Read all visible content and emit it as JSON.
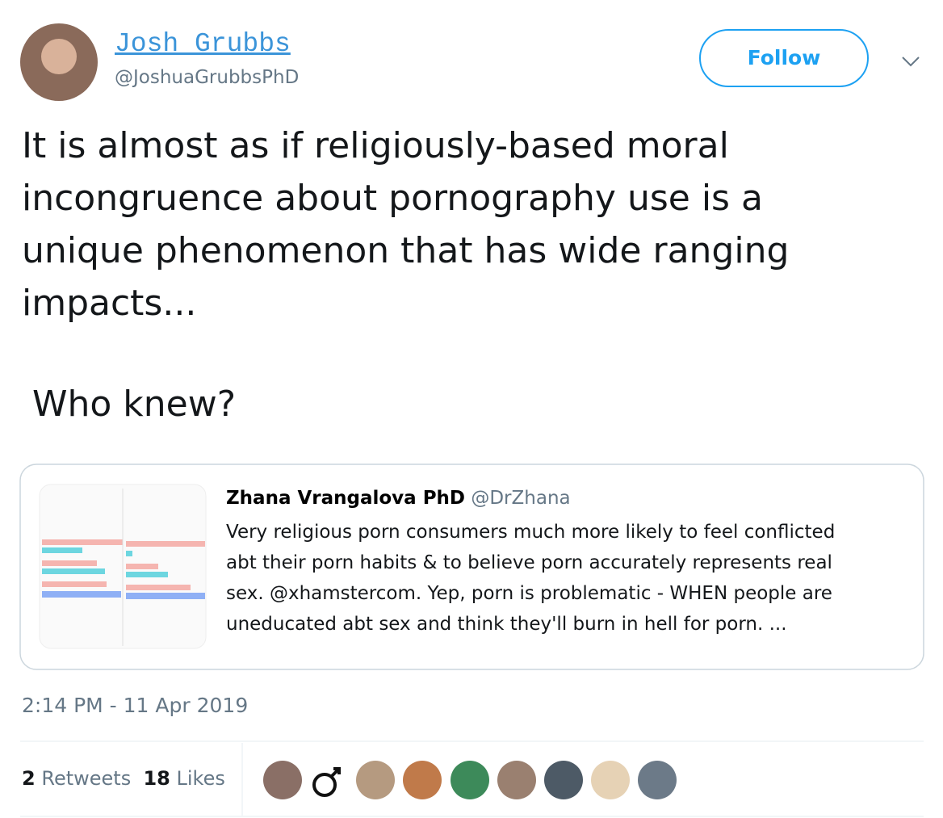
{
  "author": {
    "name": "Josh Grubbs",
    "handle": "@JoshuaGrubbsPhD"
  },
  "follow_button": "Follow",
  "tweet": {
    "lines": [
      "It is almost as if religiously-based moral",
      "incongruence about pornography use is a",
      "unique phenomenon that has wide ranging",
      "impacts..."
    ],
    "closing": "Who knew?"
  },
  "quoted_tweet": {
    "name": "Zhana Vrangalova PhD",
    "handle": "@DrZhana",
    "lines": [
      "Very religious porn consumers much more likely to feel conflicted",
      "abt their porn habits & to believe porn accurately represents real",
      "sex. @xhamstercom. Yep, porn is problematic - WHEN people are",
      "uneducated abt sex and think they'll burn in hell for porn. ..."
    ]
  },
  "timestamp": "2:14 PM - 11 Apr 2019",
  "stats": [
    {
      "count": 2,
      "label": "Retweets"
    },
    {
      "count": 18,
      "label": "Likes"
    }
  ]
}
